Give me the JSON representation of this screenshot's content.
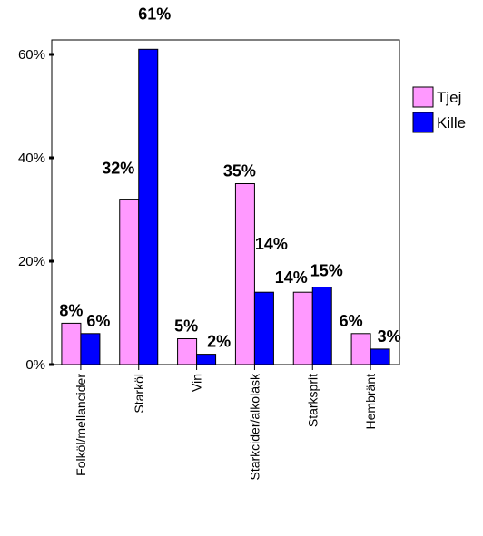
{
  "chart_data": {
    "type": "bar",
    "title": "",
    "xlabel": "",
    "ylabel": "",
    "ylim": [
      0,
      66
    ],
    "yticks": [
      {
        "value": 0,
        "label": "0%"
      },
      {
        "value": 20,
        "label": "20%"
      },
      {
        "value": 40,
        "label": "40%"
      },
      {
        "value": 60,
        "label": "60%"
      }
    ],
    "categories": [
      "Folköl/mellancider",
      "Starköl",
      "Vin",
      "Starkcider/alkoläsk",
      "Starksprit",
      "Hembränt"
    ],
    "series": [
      {
        "name": "Tjej",
        "color": "#ff99ff",
        "values": [
          8,
          32,
          5,
          35,
          14,
          6
        ],
        "labels": [
          "8%",
          "32%",
          "5%",
          "35%",
          "14%",
          "6%"
        ]
      },
      {
        "name": "Kille",
        "color": "#0000ff",
        "values": [
          6,
          61,
          2,
          14,
          15,
          3
        ],
        "labels": [
          "6%",
          "61%",
          "2%",
          "14%",
          "15%",
          "3%"
        ]
      }
    ],
    "grid": false,
    "legend": "right"
  }
}
